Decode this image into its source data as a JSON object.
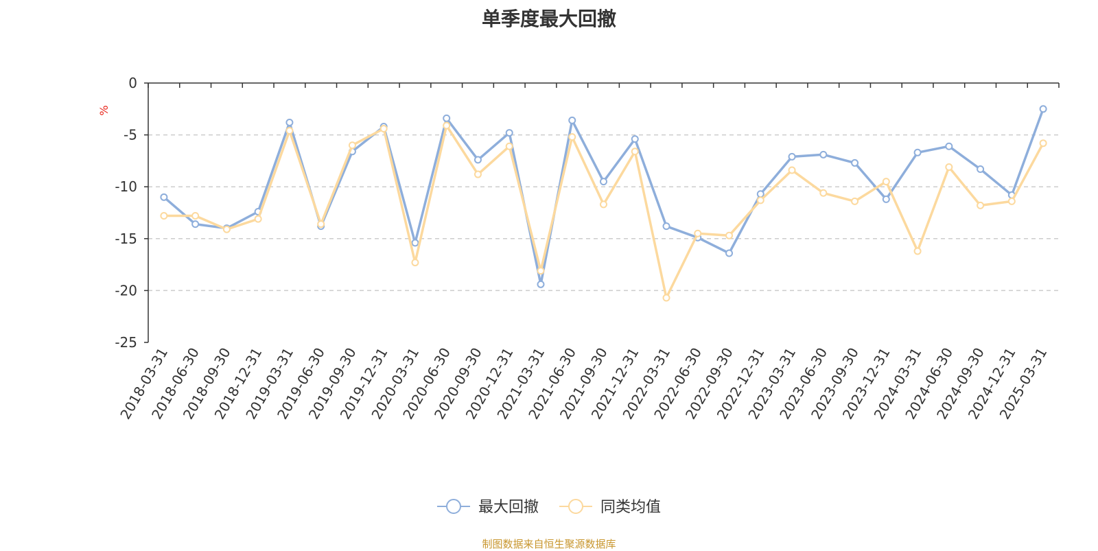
{
  "chart_data": {
    "type": "line",
    "title": "单季度最大回撤",
    "ylabel": "%",
    "ylim": [
      -25,
      0
    ],
    "yticks": [
      0,
      -5,
      -10,
      -15,
      -20,
      -25
    ],
    "grid": true,
    "legend_position": "bottom-center",
    "categories": [
      "2018-03-31",
      "2018-06-30",
      "2018-09-30",
      "2018-12-31",
      "2019-03-31",
      "2019-06-30",
      "2019-09-30",
      "2019-12-31",
      "2020-03-31",
      "2020-06-30",
      "2020-09-30",
      "2020-12-31",
      "2021-03-31",
      "2021-06-30",
      "2021-09-30",
      "2021-12-31",
      "2022-03-31",
      "2022-06-30",
      "2022-09-30",
      "2022-12-31",
      "2023-03-31",
      "2023-06-30",
      "2023-09-30",
      "2023-12-31",
      "2024-03-31",
      "2024-06-30",
      "2024-09-30",
      "2024-12-31",
      "2025-03-31"
    ],
    "series": [
      {
        "name": "最大回撤",
        "color": "#8eaedb",
        "values": [
          -11.0,
          -13.6,
          -14.0,
          -12.4,
          -3.8,
          -13.8,
          -6.6,
          -4.2,
          -15.4,
          -3.4,
          -7.4,
          -4.8,
          -19.4,
          -3.6,
          -9.5,
          -5.4,
          -13.8,
          -14.9,
          -16.4,
          -10.7,
          -7.1,
          -6.9,
          -7.7,
          -11.2,
          -6.7,
          -6.1,
          -8.3,
          -10.8,
          -2.5
        ]
      },
      {
        "name": "同类均值",
        "color": "#fcd99e",
        "values": [
          -12.8,
          -12.8,
          -14.1,
          -13.1,
          -4.6,
          -13.6,
          -6.0,
          -4.4,
          -17.3,
          -4.1,
          -8.8,
          -6.1,
          -18.1,
          -5.2,
          -11.7,
          -6.6,
          -20.7,
          -14.5,
          -14.7,
          -11.3,
          -8.4,
          -10.6,
          -11.4,
          -9.5,
          -16.2,
          -8.1,
          -11.8,
          -11.4,
          -5.8
        ]
      }
    ]
  },
  "footer": {
    "source": "制图数据来自恒生聚源数据库"
  }
}
